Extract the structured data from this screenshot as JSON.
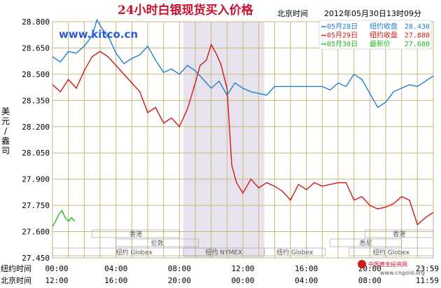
{
  "chart_data": {
    "type": "line",
    "title": "24小时白银现货买入价格",
    "timezone_label": "北京时间",
    "timestamp": "2012年05月30日13时09分",
    "ylabel": "美元/盎司",
    "ylim": [
      27.45,
      28.8
    ],
    "yticks": [
      "28.800",
      "28.650",
      "28.500",
      "28.350",
      "28.200",
      "28.050",
      "27.900",
      "27.750",
      "27.600",
      "27.450"
    ],
    "xlim": [
      0,
      24
    ],
    "x_rows": [
      {
        "label": "纽约时间",
        "ticks": [
          "00:00",
          "04:00",
          "08:00",
          "12:00",
          "16:00",
          "20:00",
          "23:59"
        ]
      },
      {
        "label": "北京时间",
        "ticks": [
          "12:00",
          "16:00",
          "20:00",
          "00:00",
          "04:00",
          "08:00",
          "11:59"
        ]
      }
    ],
    "x_tick_positions": [
      0,
      4,
      8,
      12,
      16,
      20,
      23.98
    ],
    "shaded_range": [
      8.25,
      13.35
    ],
    "sessions": [
      {
        "name": "香港",
        "row": 0,
        "range": [
          2.5,
          8.0
        ]
      },
      {
        "name": "纽约 Globex",
        "row": 2,
        "range": [
          0,
          10.3
        ]
      },
      {
        "name": "伦敦",
        "row": 1,
        "range": [
          4.0,
          9.2
        ]
      },
      {
        "name": "纽约 NYMEX",
        "row": 2,
        "range": [
          8.25,
          13.35
        ]
      },
      {
        "name": "纽约 Globex",
        "row": 2,
        "range": [
          13.35,
          17.2
        ]
      },
      {
        "name": "悉尼",
        "row": 1,
        "range": [
          17.5,
          22.0
        ]
      },
      {
        "name": "香港",
        "row": 0,
        "range": [
          19.7,
          24.0
        ]
      },
      {
        "name": "纽约 Globex",
        "row": 2,
        "range": [
          18.7,
          24.0
        ]
      }
    ],
    "series": [
      {
        "name": "05月28日",
        "legend_label": "纽约收盘",
        "legend_value": "28.430",
        "color": "#1f7fd0",
        "x": [
          0,
          0.5,
          1,
          1.5,
          2,
          2.5,
          2.8,
          3.2,
          3.6,
          4,
          4.5,
          5,
          5.5,
          6,
          6.5,
          7,
          7.5,
          8,
          8.5,
          9,
          9.5,
          10,
          10.5,
          11,
          11.5,
          12,
          12.5,
          13,
          13.5,
          14,
          15,
          16,
          17,
          17.5,
          18,
          18.5,
          19,
          19.5,
          20,
          20.5,
          21,
          21.5,
          22,
          22.5,
          23,
          23.5,
          24
        ],
        "values": [
          28.6,
          28.57,
          28.63,
          28.62,
          28.66,
          28.72,
          28.81,
          28.75,
          28.7,
          28.62,
          28.56,
          28.59,
          28.61,
          28.66,
          28.58,
          28.51,
          28.53,
          28.5,
          28.55,
          28.52,
          28.47,
          28.42,
          28.46,
          28.38,
          28.45,
          28.42,
          28.4,
          28.39,
          28.38,
          28.43,
          28.43,
          28.43,
          28.43,
          28.41,
          28.45,
          28.43,
          28.5,
          28.47,
          28.39,
          28.31,
          28.34,
          28.4,
          28.42,
          28.44,
          28.43,
          28.46,
          28.49
        ]
      },
      {
        "name": "05月29日",
        "legend_label": "纽约收盘",
        "legend_value": "27.880",
        "color": "#d01818",
        "x": [
          0,
          0.5,
          1,
          1.5,
          2,
          2.5,
          3,
          3.5,
          4,
          4.5,
          5,
          5.5,
          6,
          6.5,
          7,
          7.5,
          8,
          8.5,
          9,
          9.3,
          9.7,
          10,
          10.3,
          10.6,
          11,
          11.3,
          11.6,
          12,
          12.5,
          13,
          13.5,
          14,
          14.5,
          15,
          15.5,
          16,
          16.5,
          17,
          17.5,
          18,
          18.5,
          19,
          19.5,
          20,
          20.5,
          21,
          21.5,
          22,
          22.5,
          23,
          23.5,
          24
        ],
        "values": [
          28.44,
          28.4,
          28.47,
          28.42,
          28.52,
          28.6,
          28.63,
          28.6,
          28.55,
          28.5,
          28.45,
          28.4,
          28.28,
          28.31,
          28.22,
          28.25,
          28.2,
          28.3,
          28.45,
          28.55,
          28.58,
          28.67,
          28.62,
          28.56,
          28.42,
          27.98,
          27.88,
          27.82,
          27.9,
          27.85,
          27.88,
          27.86,
          27.83,
          27.78,
          27.87,
          27.84,
          27.88,
          27.86,
          27.87,
          27.88,
          27.88,
          27.78,
          27.8,
          27.75,
          27.73,
          27.74,
          27.76,
          27.8,
          27.78,
          27.64,
          27.68,
          27.71
        ]
      },
      {
        "name": "05月30日",
        "legend_label": "最新价",
        "legend_value": "27.680",
        "color": "#22b822",
        "x": [
          0,
          0.2,
          0.4,
          0.6,
          0.8,
          1,
          1.2,
          1.4
        ],
        "values": [
          27.63,
          27.66,
          27.7,
          27.72,
          27.68,
          27.66,
          27.68,
          27.66
        ]
      }
    ]
  },
  "watermark": "www.kitco.cn",
  "footer_logo_text": "中国黄金投资网",
  "footer_url": "www.cngold.org"
}
